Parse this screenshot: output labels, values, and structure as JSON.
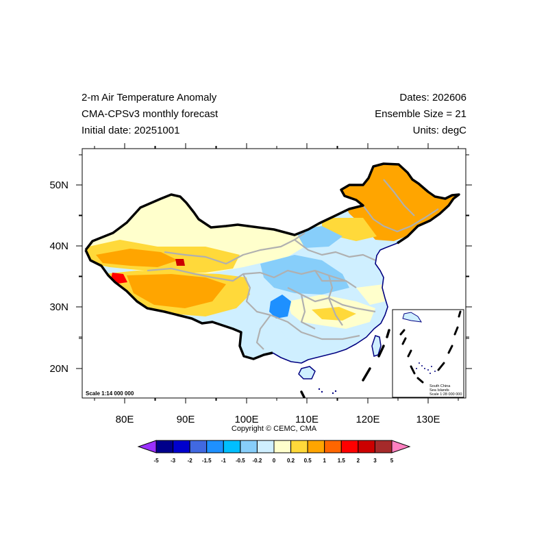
{
  "header": {
    "title": "2-m Air Temperature Anomaly",
    "subtitle": "CMA-CPSv3 monthly forecast",
    "initial_date": "Initial date: 20251001",
    "dates": "Dates: 202606",
    "ensemble": "Ensemble Size = 21",
    "units": "Units: degC"
  },
  "map": {
    "lon_ticks": [
      "80E",
      "90E",
      "100E",
      "110E",
      "120E",
      "130E"
    ],
    "lat_ticks": [
      "50N",
      "40N",
      "30N",
      "20N"
    ],
    "scale_text": "Scale 1:14 000 000",
    "inset": {
      "line1": "South China",
      "line2": "Sea Islands",
      "line3": "Scale 1:28 000 000"
    }
  },
  "copyright": "Copyright © CEMC, CMA",
  "colorbar": {
    "labels": [
      "-5",
      "-3",
      "-2",
      "-1.5",
      "-1",
      "-0.5",
      "-0.2",
      "0",
      "0.2",
      "0.5",
      "1",
      "1.5",
      "2",
      "3",
      "5"
    ],
    "colors": [
      "#9b30ff",
      "#00008b",
      "#0000cd",
      "#4169e1",
      "#1e90ff",
      "#00bfff",
      "#87cefa",
      "#cfefff",
      "#ffffcc",
      "#ffd93a",
      "#ffa500",
      "#ff6600",
      "#ff0000",
      "#cc0000",
      "#a52a2a",
      "#ff80c0"
    ]
  }
}
